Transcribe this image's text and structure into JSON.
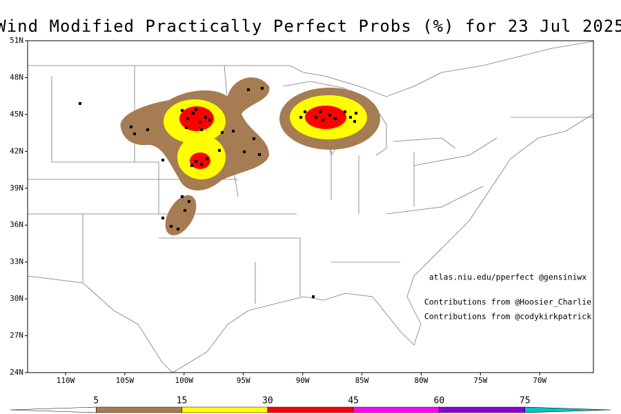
{
  "title": "Wind Modified Practically Perfect Probs (%) for 23 Jul 2025",
  "lat_ticks": [
    {
      "value": 51,
      "label": "51N"
    },
    {
      "value": 48,
      "label": "48N"
    },
    {
      "value": 45,
      "label": "45N"
    },
    {
      "value": 42,
      "label": "42N"
    },
    {
      "value": 39,
      "label": "39N"
    },
    {
      "value": 36,
      "label": "36N"
    },
    {
      "value": 33,
      "label": "33N"
    },
    {
      "value": 30,
      "label": "30N"
    },
    {
      "value": 27,
      "label": "27N"
    },
    {
      "value": 24,
      "label": "24N"
    }
  ],
  "lon_ticks": [
    {
      "value": -110,
      "label": "110W"
    },
    {
      "value": -105,
      "label": "105W"
    },
    {
      "value": -100,
      "label": "100W"
    },
    {
      "value": -95,
      "label": "95W"
    },
    {
      "value": -90,
      "label": "90W"
    },
    {
      "value": -85,
      "label": "85W"
    },
    {
      "value": -80,
      "label": "80W"
    },
    {
      "value": -75,
      "label": "75W"
    },
    {
      "value": -70,
      "label": "70W"
    }
  ],
  "credits": [
    "atlas.niu.edu/pperfect @gensiniwx",
    "Contributions from @Hoosier_Charlie",
    "Contributions from @codykirkpatrick"
  ],
  "colorbar": {
    "levels": [
      5,
      15,
      30,
      45,
      60,
      75
    ],
    "colors": [
      "#ffffff",
      "#a67c52",
      "#ffff00",
      "#ff0000",
      "#ff00ff",
      "#8b00d8",
      "#00c8c8"
    ]
  }
}
